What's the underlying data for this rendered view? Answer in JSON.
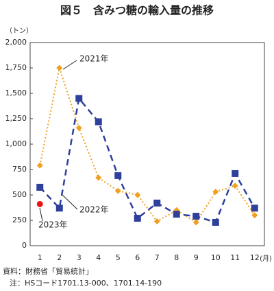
{
  "chart_data": {
    "type": "line",
    "title": "図５　含みつ糖の輸入量の推移",
    "y_unit": "（トン）",
    "x_unit": "(月)",
    "categories": [
      "1",
      "2",
      "3",
      "4",
      "5",
      "6",
      "7",
      "8",
      "9",
      "10",
      "11",
      "12"
    ],
    "series": [
      {
        "name": "2021年",
        "color": "#f0a020",
        "marker": "diamond",
        "dash": "2,3",
        "values": [
          790,
          1750,
          1160,
          670,
          540,
          500,
          240,
          350,
          230,
          530,
          590,
          300
        ]
      },
      {
        "name": "2022年",
        "color": "#2e3f9c",
        "marker": "square",
        "dash": "9,6",
        "values": [
          575,
          370,
          1450,
          1220,
          690,
          270,
          420,
          310,
          290,
          230,
          710,
          370
        ]
      },
      {
        "name": "2023年",
        "color": "#e81818",
        "marker": "circle",
        "dash": "none",
        "values": [
          410,
          null,
          null,
          null,
          null,
          null,
          null,
          null,
          null,
          null,
          null,
          null
        ]
      }
    ],
    "ylim": [
      0,
      2000
    ],
    "yticks": [
      0,
      250,
      500,
      750,
      {
        "value": 1000,
        "label": "1,000"
      },
      {
        "value": 1250,
        "label": "1,250"
      },
      {
        "value": 1500,
        "label": "1,500"
      },
      {
        "value": 1750,
        "label": "1,750"
      },
      {
        "value": 2000,
        "label": "2,000"
      }
    ],
    "grid": false,
    "notes": [
      "資料：財務省「貿易統計」",
      "注：HSコード1701.13-000、1701.14-190"
    ]
  }
}
